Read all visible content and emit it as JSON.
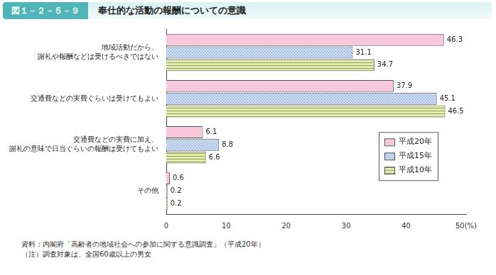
{
  "chart_data": {
    "type": "bar",
    "figure_number": "図１－２－５－９",
    "title": "奉仕的な活動の報酬についての意識",
    "orientation": "horizontal",
    "categories": [
      "地域活動だから、謝礼や報酬などは受けるべきではない",
      "交通費などの実費ぐらいは受けてもよい",
      "交通費などの実費に加え、謝礼の意味で日当ぐらいの報酬は受けてもよい",
      "その他"
    ],
    "series": [
      {
        "name": "平成20年",
        "color": "#f7c8dc",
        "values": [
          46.3,
          37.9,
          6.1,
          0.6
        ]
      },
      {
        "name": "平成15年",
        "color": "#c9daf2",
        "values": [
          31.1,
          45.1,
          8.8,
          0.2
        ]
      },
      {
        "name": "平成10年",
        "color": "#e2ecb4",
        "values": [
          34.7,
          46.5,
          6.6,
          0.2
        ]
      }
    ],
    "xlim": [
      0,
      50
    ],
    "xticks": [
      0,
      10,
      20,
      30,
      40,
      {
        "value": 50,
        "label": "50(%)"
      }
    ],
    "grid": false,
    "legend": "right",
    "data_labels": true,
    "notes": [
      "資料：内閣府「高齢者の地域社会への参加に関する意識調査」（平成20年）",
      "（注）調査対象は、全国60歳以上の男女"
    ]
  }
}
